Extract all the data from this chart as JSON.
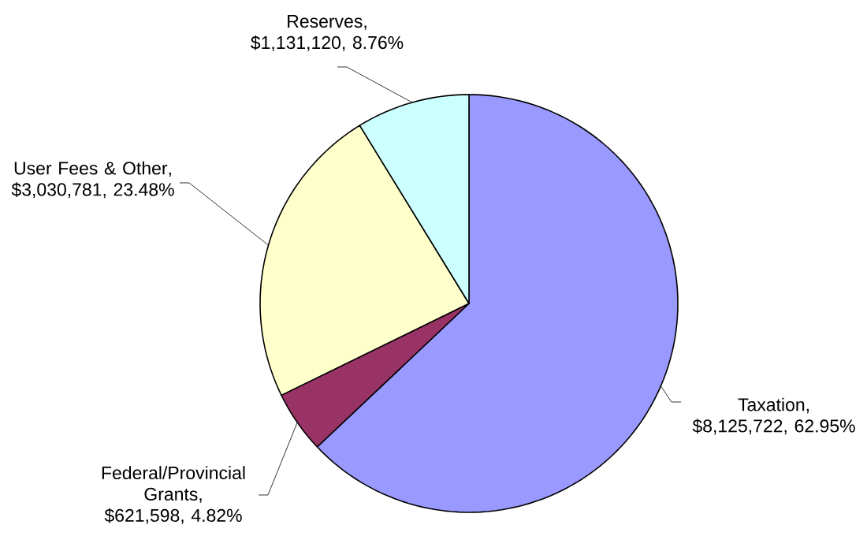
{
  "chart_data": {
    "type": "pie",
    "categories": [
      "Taxation",
      "Federal/Provincial Grants",
      "User Fees & Other",
      "Reserves"
    ],
    "values": [
      8125722,
      621598,
      3030781,
      1131120
    ],
    "value_labels": [
      ", $8,125,722, 62.95%",
      ", $621,598, 4.82%",
      ", $3,030,781, 23.48%",
      ", $1,131,120, 8.76%"
    ],
    "colors": [
      "#9999ff",
      "#993366",
      "#ffffcc",
      "#ccffff"
    ]
  }
}
